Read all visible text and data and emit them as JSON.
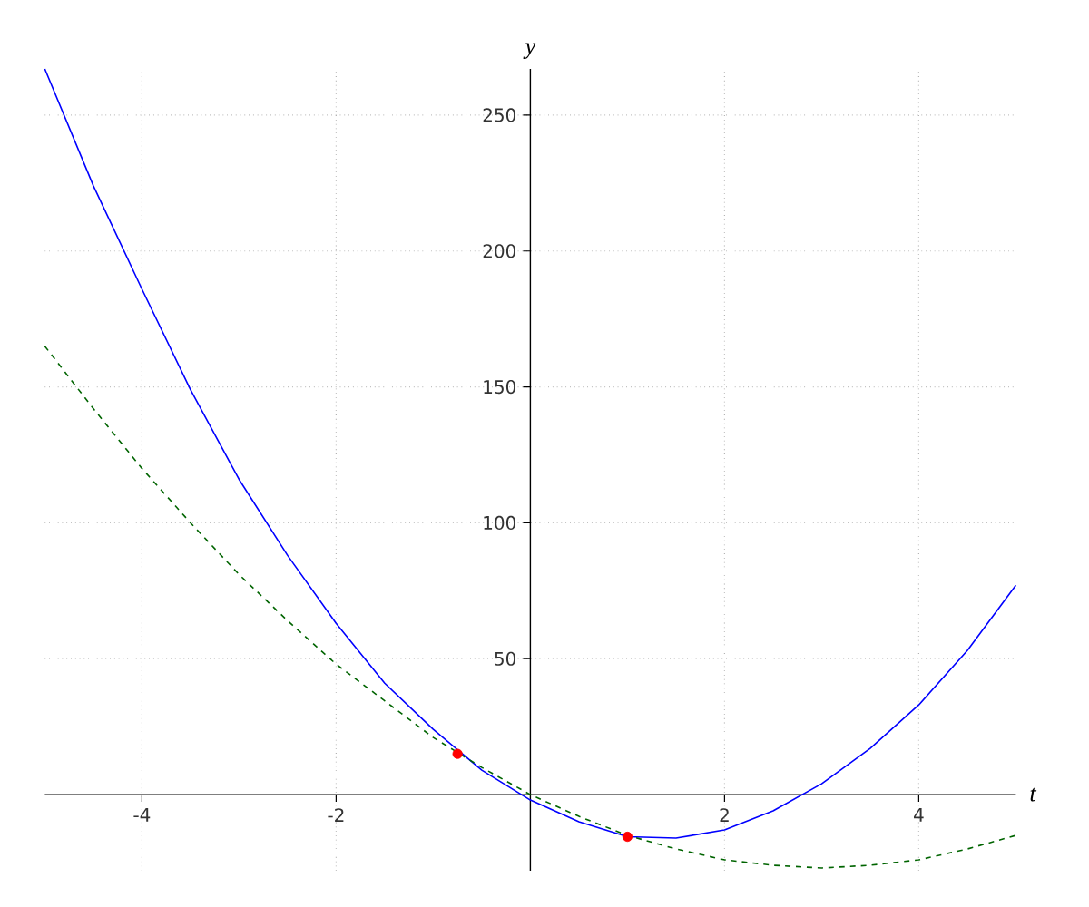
{
  "chart_data": {
    "type": "line",
    "xlabel": "t",
    "ylabel": "y",
    "xlim": [
      -5,
      5
    ],
    "ylim": [
      -28,
      267
    ],
    "xticks": [
      -4,
      -2,
      2,
      4
    ],
    "yticks": [
      50,
      100,
      150,
      200,
      250
    ],
    "grid": true,
    "series": [
      {
        "color": "#0000ff",
        "x": [
          -5,
          -4.5,
          -4,
          -3.5,
          -3,
          -2.5,
          -2,
          -1.5,
          -1,
          -0.5,
          0,
          0.5,
          1,
          1.5,
          2,
          2.5,
          3,
          3.5,
          4,
          4.5,
          5
        ],
        "values": [
          267,
          224,
          186,
          149,
          116,
          88,
          63,
          41,
          24,
          9,
          -2,
          -10,
          -15.5,
          -16,
          -13,
          -6,
          4,
          17,
          33,
          53,
          77
        ]
      },
      {
        "color": "#006400",
        "line_style": "dashed",
        "x": [
          -5,
          -4.5,
          -4,
          -3.5,
          -3,
          -2.5,
          -2,
          -1.5,
          -1,
          -0.5,
          0,
          0.5,
          1,
          1.5,
          2,
          2.5,
          3,
          3.5,
          4,
          4.5,
          5
        ],
        "values": [
          165,
          142,
          120,
          100,
          81,
          64,
          48,
          34.5,
          21,
          10,
          0,
          -8,
          -15,
          -20,
          -24,
          -26,
          -27,
          -26,
          -24,
          -20,
          -15
        ]
      },
      {
        "type": "scatter",
        "color": "#ff0000",
        "marker": "circle",
        "x": [
          -0.75,
          1
        ],
        "values": [
          15,
          -15.5
        ]
      }
    ]
  }
}
